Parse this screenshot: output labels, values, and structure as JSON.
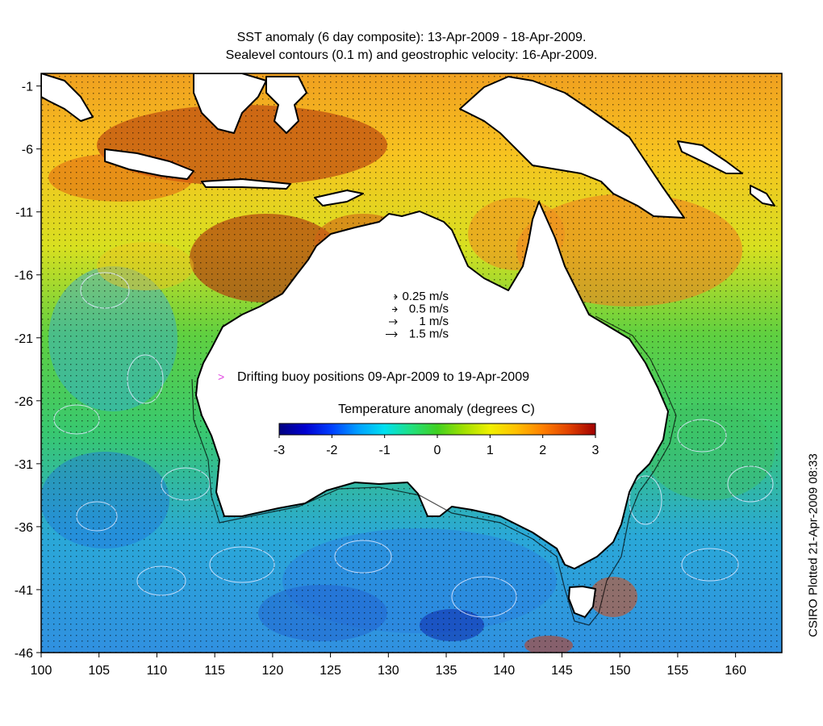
{
  "title_line1": "SST anomaly (6 day composite): 13-Apr-2009 - 18-Apr-2009.",
  "title_line2": "Sealevel contours (0.1 m) and geostrophic velocity: 16-Apr-2009.",
  "side_label": "CSIRO Plotted 21-Apr-2009 08:33",
  "map": {
    "lon_range": [
      100,
      164
    ],
    "lat_range": [
      -46,
      0
    ],
    "lon_ticks": [
      "100",
      "105",
      "110",
      "115",
      "120",
      "125",
      "130",
      "135",
      "140",
      "145",
      "150",
      "155",
      "160"
    ],
    "lat_ticks": [
      "-1",
      "-6",
      "-11",
      "-16",
      "-21",
      "-26",
      "-31",
      "-36",
      "-41",
      "-46"
    ],
    "lon_tick_values": [
      100,
      105,
      110,
      115,
      120,
      125,
      130,
      135,
      140,
      145,
      150,
      155,
      160
    ],
    "lat_tick_values": [
      -1,
      -6,
      -11,
      -16,
      -21,
      -26,
      -31,
      -36,
      -41,
      -46
    ]
  },
  "velocity_legend": [
    "0.25 m/s",
    "0.5 m/s",
    "1 m/s",
    "1.5 m/s"
  ],
  "velocity_values": [
    0.25,
    0.5,
    1,
    1.5
  ],
  "buoy_legend": {
    "marker": ">",
    "text": "Drifting buoy positions 09-Apr-2009 to 19-Apr-2009",
    "color": "#e040e0"
  },
  "colorbar": {
    "title": "Temperature anomaly (degrees C)",
    "ticks": [
      "-3",
      "-2",
      "-1",
      "0",
      "1",
      "2",
      "3"
    ],
    "range": [
      -3,
      3
    ],
    "colors": [
      "#00007f",
      "#0000d0",
      "#0040ff",
      "#00a0ff",
      "#00e0f0",
      "#20e080",
      "#40d020",
      "#a0e000",
      "#f0f000",
      "#ffc000",
      "#ff8000",
      "#e04000",
      "#a00000"
    ]
  },
  "colors": {
    "land": "#ffffff",
    "coast": "#000000",
    "contour": "#dfe7ff"
  }
}
